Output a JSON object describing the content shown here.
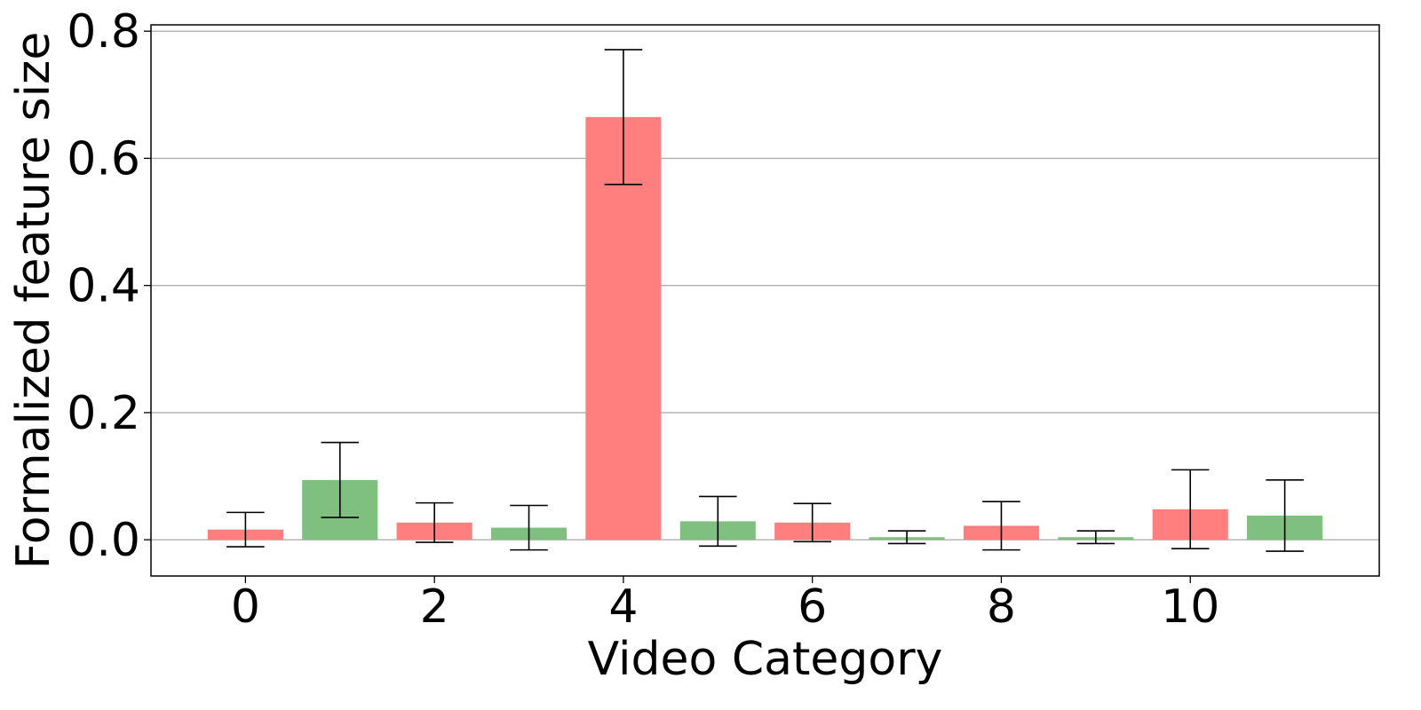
{
  "chart_data": {
    "type": "bar",
    "xlabel": "Video Category",
    "ylabel": "Formalized feature size",
    "xlim": [
      -1.0,
      12.0
    ],
    "ylim": [
      -0.057,
      0.81
    ],
    "x_ticks": [
      0,
      2,
      4,
      6,
      8,
      10
    ],
    "y_ticks": [
      0.0,
      0.2,
      0.4,
      0.6,
      0.8
    ],
    "y_tick_labels": [
      "0.0",
      "0.2",
      "0.4",
      "0.6",
      "0.8"
    ],
    "grid": "horizontal",
    "categories": [
      0,
      1,
      2,
      3,
      4,
      5,
      6,
      7,
      8,
      9,
      10,
      11
    ],
    "values": [
      0.016,
      0.094,
      0.027,
      0.019,
      0.665,
      0.029,
      0.027,
      0.004,
      0.022,
      0.004,
      0.048,
      0.038
    ],
    "errors": [
      0.027,
      0.059,
      0.031,
      0.035,
      0.106,
      0.039,
      0.03,
      0.01,
      0.038,
      0.01,
      0.062,
      0.056
    ],
    "bar_colors": [
      "#ff7f7f",
      "#7fbf7f",
      "#ff7f7f",
      "#7fbf7f",
      "#ff7f7f",
      "#7fbf7f",
      "#ff7f7f",
      "#7fbf7f",
      "#ff7f7f",
      "#7fbf7f",
      "#ff7f7f",
      "#7fbf7f"
    ],
    "colors": {
      "red": "#ff7f7f",
      "green": "#7fbf7f",
      "grid": "#b0b0b0",
      "error_bar": "#000000"
    }
  }
}
